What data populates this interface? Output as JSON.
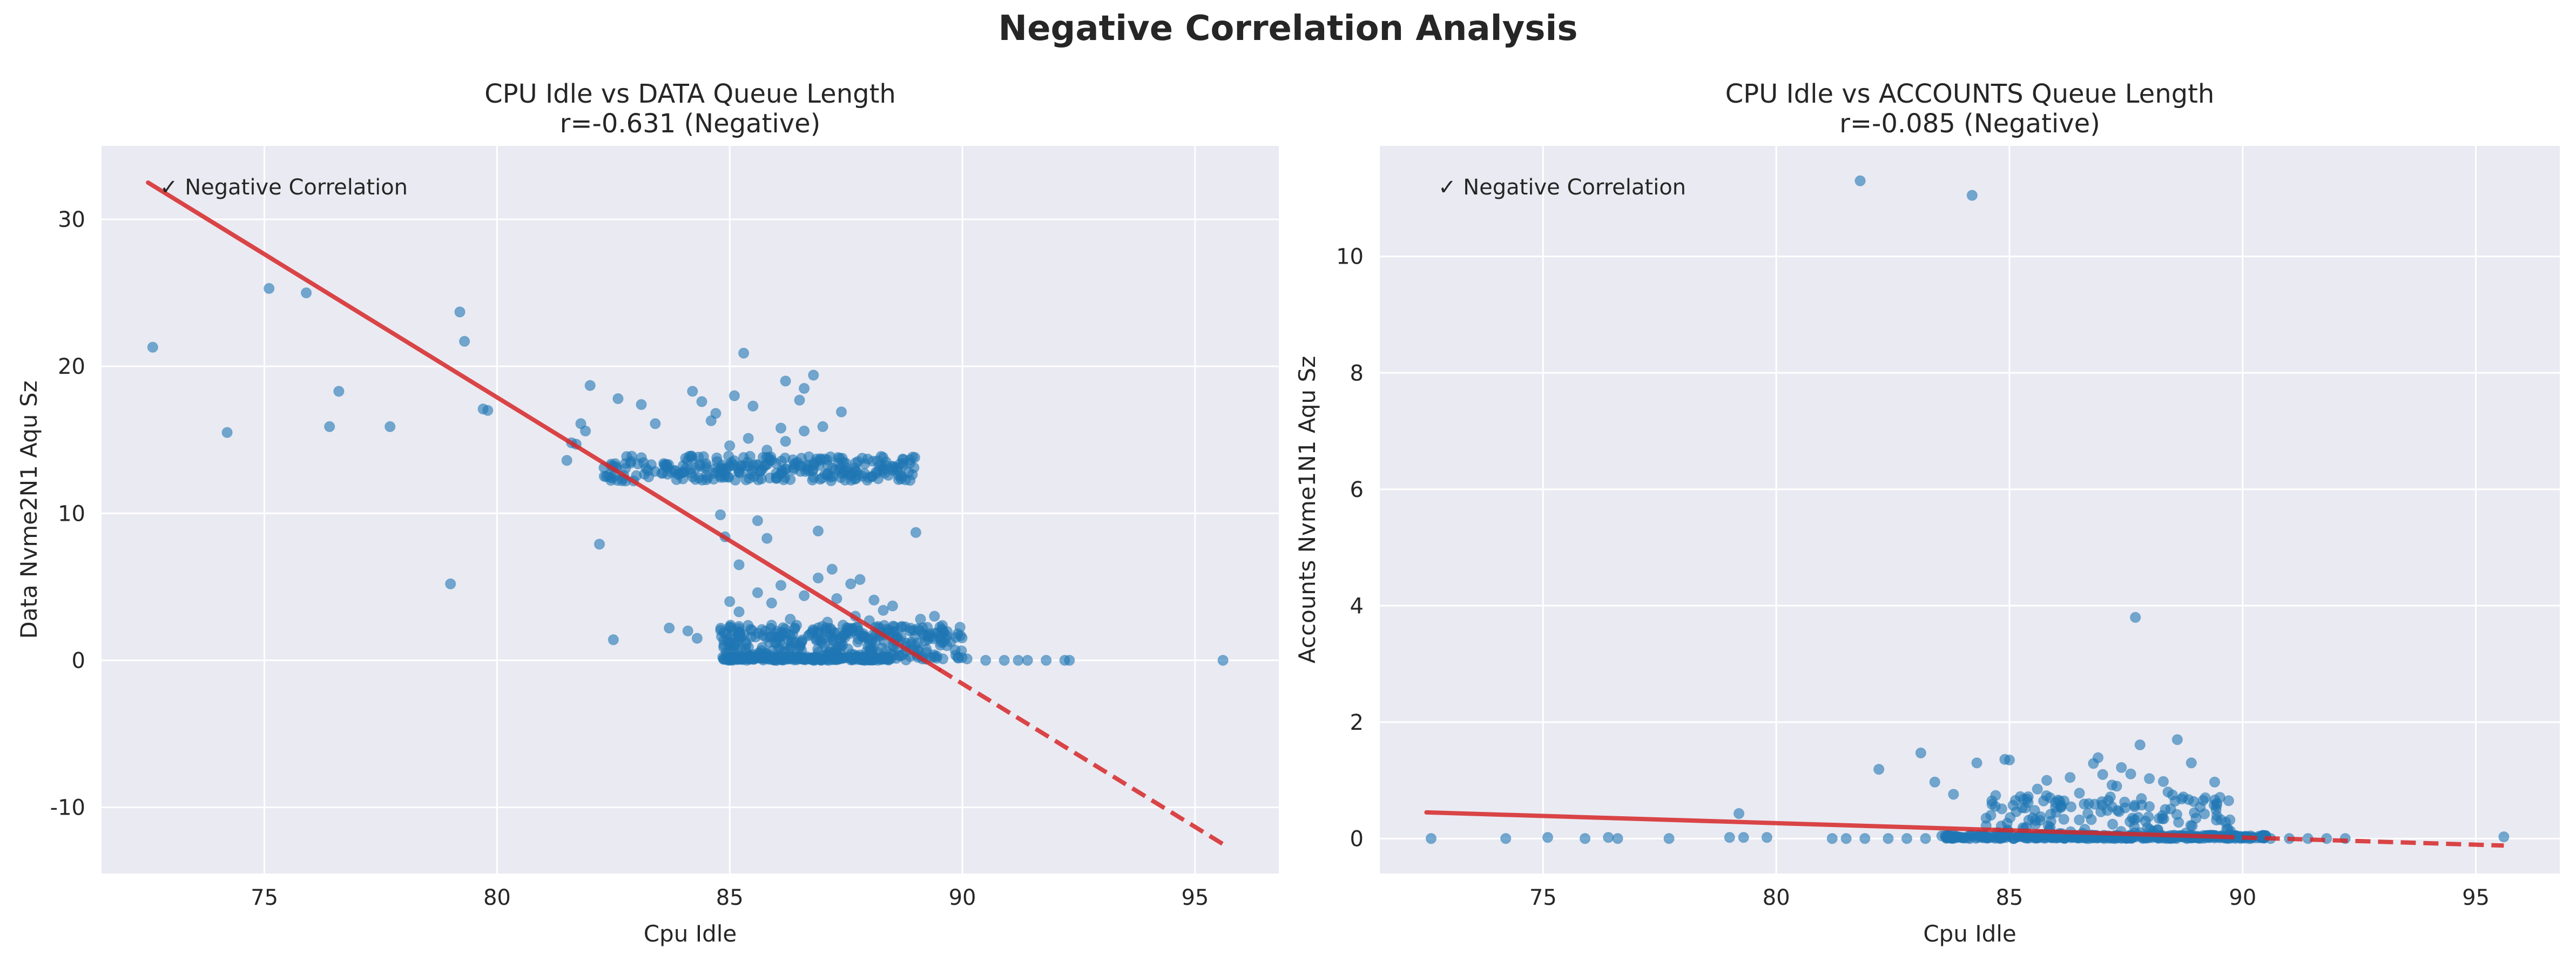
{
  "figure": {
    "suptitle": "Negative Correlation Analysis"
  },
  "colors": {
    "background": "#ffffff",
    "axes_face": "#eaeaf2",
    "grid": "#ffffff",
    "points": "#1f77b4",
    "fit_line": "#d62728",
    "text": "#262626"
  },
  "chart_data": [
    {
      "type": "scatter",
      "title_line1": "CPU Idle vs DATA Queue Length",
      "title_line2": "r=-0.631 (Negative)",
      "xlabel": "Cpu Idle",
      "ylabel": "Data Nvme2N1 Aqu Sz",
      "annotation": "✓ Negative Correlation",
      "xlim": [
        71.5,
        96.8
      ],
      "ylim": [
        -14.5,
        35
      ],
      "xticks": [
        75,
        80,
        85,
        90,
        95
      ],
      "xtick_labels": [
        "75",
        "80",
        "85",
        "90",
        "95"
      ],
      "yticks": [
        -10,
        0,
        10,
        20,
        30
      ],
      "ytick_labels": [
        "-10",
        "0",
        "10",
        "20",
        "30"
      ],
      "grid": true,
      "trend": {
        "x": [
          72.5,
          95.6
        ],
        "y": [
          32.5,
          -12.5
        ],
        "solid_until_x": 89.5
      },
      "points": [
        [
          72.6,
          21.3
        ],
        [
          74.2,
          15.5
        ],
        [
          75.1,
          25.3
        ],
        [
          75.9,
          25.0
        ],
        [
          76.4,
          15.9
        ],
        [
          76.6,
          18.3
        ],
        [
          77.7,
          15.9
        ],
        [
          79.0,
          5.2
        ],
        [
          79.2,
          23.7
        ],
        [
          79.3,
          21.7
        ],
        [
          79.7,
          17.1
        ],
        [
          79.8,
          17.0
        ],
        [
          81.5,
          13.6
        ],
        [
          81.6,
          14.8
        ],
        [
          81.7,
          14.7
        ],
        [
          81.8,
          16.1
        ],
        [
          81.9,
          15.6
        ],
        [
          82.0,
          18.7
        ],
        [
          82.2,
          7.9
        ],
        [
          82.3,
          13.1
        ],
        [
          82.5,
          1.4
        ],
        [
          82.6,
          17.8
        ],
        [
          83.1,
          17.4
        ],
        [
          83.4,
          16.1
        ],
        [
          83.7,
          2.2
        ],
        [
          84.1,
          2.0
        ],
        [
          84.2,
          18.3
        ],
        [
          84.3,
          1.5
        ],
        [
          84.4,
          17.6
        ],
        [
          84.6,
          16.3
        ],
        [
          84.8,
          9.9
        ],
        [
          84.9,
          8.4
        ],
        [
          85.1,
          18.0
        ],
        [
          85.2,
          6.5
        ],
        [
          85.3,
          20.9
        ],
        [
          85.5,
          17.3
        ],
        [
          85.6,
          9.5
        ],
        [
          85.8,
          8.3
        ],
        [
          86.1,
          15.8
        ],
        [
          86.2,
          19.0
        ],
        [
          86.5,
          17.7
        ],
        [
          86.6,
          18.5
        ],
        [
          86.8,
          19.4
        ],
        [
          86.9,
          8.8
        ],
        [
          87.0,
          15.9
        ],
        [
          87.2,
          6.2
        ],
        [
          87.4,
          16.9
        ],
        [
          87.6,
          5.2
        ],
        [
          87.8,
          5.5
        ],
        [
          88.1,
          4.1
        ],
        [
          88.5,
          3.7
        ],
        [
          88.7,
          2.3
        ],
        [
          89.0,
          8.7
        ],
        [
          89.1,
          2.8
        ],
        [
          89.4,
          3.0
        ],
        [
          89.6,
          1.9
        ],
        [
          89.9,
          0.2
        ],
        [
          90.1,
          0.1
        ],
        [
          90.5,
          0.0
        ],
        [
          90.9,
          0.0
        ],
        [
          91.2,
          0.0
        ],
        [
          91.4,
          0.0
        ],
        [
          91.8,
          0.0
        ],
        [
          92.2,
          0.0
        ],
        [
          92.3,
          0.0
        ],
        [
          95.6,
          0.0
        ],
        [
          85.0,
          4.0
        ],
        [
          85.2,
          3.3
        ],
        [
          85.6,
          4.6
        ],
        [
          85.9,
          3.9
        ],
        [
          86.1,
          5.1
        ],
        [
          86.3,
          2.8
        ],
        [
          86.6,
          4.4
        ],
        [
          86.9,
          5.6
        ],
        [
          87.1,
          2.6
        ],
        [
          87.3,
          4.2
        ],
        [
          87.7,
          3.0
        ],
        [
          88.0,
          2.7
        ],
        [
          88.3,
          3.4
        ],
        [
          88.6,
          1.6
        ],
        [
          84.5,
          13.2
        ],
        [
          84.9,
          12.6
        ],
        [
          85.3,
          13.8
        ],
        [
          85.7,
          13.0
        ],
        [
          86.0,
          12.4
        ],
        [
          86.4,
          13.4
        ],
        [
          86.7,
          12.9
        ],
        [
          87.1,
          12.6
        ],
        [
          87.5,
          13.1
        ],
        [
          87.9,
          12.7
        ],
        [
          88.3,
          12.9
        ],
        [
          88.7,
          12.5
        ],
        [
          83.6,
          13.3
        ],
        [
          84.0,
          12.8
        ],
        [
          85.4,
          15.1
        ],
        [
          85.8,
          14.3
        ],
        [
          86.2,
          14.9
        ],
        [
          86.6,
          15.6
        ],
        [
          85.0,
          14.6
        ],
        [
          84.7,
          16.8
        ]
      ],
      "bands": [
        {
          "x_min": 82.3,
          "x_max": 89.0,
          "y_min": 12.2,
          "y_max": 13.9,
          "count": 260,
          "seed": 11
        },
        {
          "x_min": 84.8,
          "x_max": 90.0,
          "y_min": 0.0,
          "y_max": 2.4,
          "count": 340,
          "seed": 23
        },
        {
          "x_min": 84.8,
          "x_max": 88.5,
          "y_min": 0.0,
          "y_max": 0.25,
          "count": 200,
          "seed": 37
        }
      ]
    },
    {
      "type": "scatter",
      "title_line1": "CPU Idle vs ACCOUNTS Queue Length",
      "title_line2": "r=-0.085 (Negative)",
      "xlabel": "Cpu Idle",
      "ylabel": "Accounts Nvme1N1 Aqu Sz",
      "annotation": "✓ Negative Correlation",
      "xlim": [
        71.5,
        96.8
      ],
      "ylim": [
        -0.6,
        11.9
      ],
      "xticks": [
        75,
        80,
        85,
        90,
        95
      ],
      "xtick_labels": [
        "75",
        "80",
        "85",
        "90",
        "95"
      ],
      "yticks": [
        0,
        2,
        4,
        6,
        8,
        10
      ],
      "ytick_labels": [
        "0",
        "2",
        "4",
        "6",
        "8",
        "10"
      ],
      "grid": true,
      "trend": {
        "x": [
          72.5,
          95.6
        ],
        "y": [
          0.45,
          -0.12
        ],
        "solid_until_x": 89.5
      },
      "points": [
        [
          72.6,
          0.0
        ],
        [
          74.2,
          0.0
        ],
        [
          75.1,
          0.02
        ],
        [
          75.9,
          0.0
        ],
        [
          76.4,
          0.02
        ],
        [
          76.6,
          0.0
        ],
        [
          77.7,
          0.0
        ],
        [
          79.0,
          0.02
        ],
        [
          79.2,
          0.43
        ],
        [
          79.3,
          0.02
        ],
        [
          79.8,
          0.02
        ],
        [
          81.8,
          11.3
        ],
        [
          84.2,
          11.05
        ],
        [
          82.2,
          1.19
        ],
        [
          83.1,
          1.47
        ],
        [
          83.4,
          0.97
        ],
        [
          83.8,
          0.76
        ],
        [
          84.3,
          1.3
        ],
        [
          84.5,
          0.35
        ],
        [
          84.9,
          1.36
        ],
        [
          85.0,
          1.35
        ],
        [
          85.4,
          0.62
        ],
        [
          85.8,
          1.0
        ],
        [
          86.1,
          0.55
        ],
        [
          86.3,
          1.05
        ],
        [
          86.5,
          0.78
        ],
        [
          86.8,
          1.29
        ],
        [
          86.9,
          1.39
        ],
        [
          87.0,
          1.1
        ],
        [
          87.2,
          0.92
        ],
        [
          87.4,
          1.22
        ],
        [
          87.6,
          1.11
        ],
        [
          87.7,
          3.8
        ],
        [
          87.8,
          1.61
        ],
        [
          88.0,
          1.03
        ],
        [
          88.3,
          0.98
        ],
        [
          88.6,
          1.7
        ],
        [
          88.9,
          1.3
        ],
        [
          89.4,
          0.97
        ],
        [
          89.7,
          0.65
        ],
        [
          89.2,
          0.7
        ],
        [
          88.0,
          0.55
        ],
        [
          85.6,
          0.85
        ],
        [
          86.7,
          0.6
        ],
        [
          87.3,
          0.9
        ],
        [
          88.4,
          0.8
        ],
        [
          84.6,
          0.4
        ],
        [
          86.0,
          0.45
        ],
        [
          89.0,
          0.35
        ],
        [
          90.2,
          0.02
        ],
        [
          90.6,
          0.0
        ],
        [
          91.0,
          0.0
        ],
        [
          91.4,
          0.0
        ],
        [
          91.8,
          0.0
        ],
        [
          92.2,
          0.0
        ],
        [
          95.6,
          0.03
        ],
        [
          81.2,
          0.0
        ],
        [
          81.5,
          0.0
        ],
        [
          81.9,
          0.0
        ],
        [
          82.4,
          0.0
        ],
        [
          82.8,
          0.0
        ],
        [
          83.2,
          0.0
        ]
      ],
      "bands": [
        {
          "x_min": 83.5,
          "x_max": 90.5,
          "y_min": 0.0,
          "y_max": 0.06,
          "count": 380,
          "seed": 51
        },
        {
          "x_min": 84.5,
          "x_max": 89.8,
          "y_min": 0.05,
          "y_max": 0.75,
          "count": 130,
          "seed": 67
        }
      ]
    }
  ]
}
